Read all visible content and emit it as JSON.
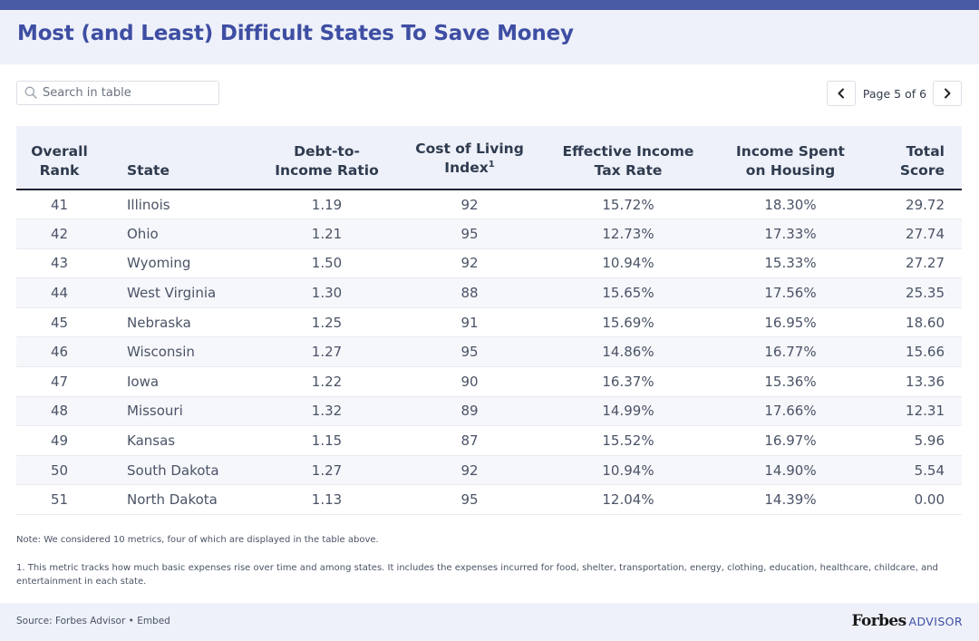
{
  "title": "Most (and Least) Difficult States To Save Money",
  "search": {
    "placeholder": "Search in table",
    "value": ""
  },
  "pager": {
    "label": "Page 5 of 6"
  },
  "columns": {
    "rank": [
      "Overall",
      "Rank"
    ],
    "state": "State",
    "debt": [
      "Debt-to-",
      "Income Ratio"
    ],
    "col": [
      "Cost of Living",
      "Index"
    ],
    "col_sup": "1",
    "tax": [
      "Effective Income",
      "Tax Rate"
    ],
    "housing": [
      "Income Spent",
      "on Housing"
    ],
    "total": [
      "Total",
      "Score"
    ]
  },
  "rows": [
    {
      "rank": "41",
      "state": "Illinois",
      "debt": "1.19",
      "col": "92",
      "tax": "15.72%",
      "housing": "18.30%",
      "total": "29.72"
    },
    {
      "rank": "42",
      "state": "Ohio",
      "debt": "1.21",
      "col": "95",
      "tax": "12.73%",
      "housing": "17.33%",
      "total": "27.74"
    },
    {
      "rank": "43",
      "state": "Wyoming",
      "debt": "1.50",
      "col": "92",
      "tax": "10.94%",
      "housing": "15.33%",
      "total": "27.27"
    },
    {
      "rank": "44",
      "state": "West Virginia",
      "debt": "1.30",
      "col": "88",
      "tax": "15.65%",
      "housing": "17.56%",
      "total": "25.35"
    },
    {
      "rank": "45",
      "state": "Nebraska",
      "debt": "1.25",
      "col": "91",
      "tax": "15.69%",
      "housing": "16.95%",
      "total": "18.60"
    },
    {
      "rank": "46",
      "state": "Wisconsin",
      "debt": "1.27",
      "col": "95",
      "tax": "14.86%",
      "housing": "16.77%",
      "total": "15.66"
    },
    {
      "rank": "47",
      "state": "Iowa",
      "debt": "1.22",
      "col": "90",
      "tax": "16.37%",
      "housing": "15.36%",
      "total": "13.36"
    },
    {
      "rank": "48",
      "state": "Missouri",
      "debt": "1.32",
      "col": "89",
      "tax": "14.99%",
      "housing": "17.66%",
      "total": "12.31"
    },
    {
      "rank": "49",
      "state": "Kansas",
      "debt": "1.15",
      "col": "87",
      "tax": "15.52%",
      "housing": "16.97%",
      "total": "5.96"
    },
    {
      "rank": "50",
      "state": "South Dakota",
      "debt": "1.27",
      "col": "92",
      "tax": "10.94%",
      "housing": "14.90%",
      "total": "5.54"
    },
    {
      "rank": "51",
      "state": "North Dakota",
      "debt": "1.13",
      "col": "95",
      "tax": "12.04%",
      "housing": "14.39%",
      "total": "0.00"
    }
  ],
  "note": "Note: We considered 10 metrics, four of which are displayed in the table above.",
  "footnote": "1. This metric tracks how much basic expenses rise over time and among states. It includes the expenses incurred for food, shelter, transportation, energy, clothing, education, healthcare, childcare, and entertainment in each state.",
  "footer": {
    "source_prefix": "Source: ",
    "source_link": "Forbes Advisor",
    "separator": " • ",
    "embed_link": "Embed",
    "logo_word": "Forbes",
    "logo_suffix": "ADVISOR"
  },
  "colors": {
    "accent": "#3e4ea3",
    "top_bar": "#4a5ba6",
    "header_bg": "#eef1f9"
  },
  "icons": {
    "search": "search-icon",
    "prev": "chevron-left-icon",
    "next": "chevron-right-icon"
  }
}
